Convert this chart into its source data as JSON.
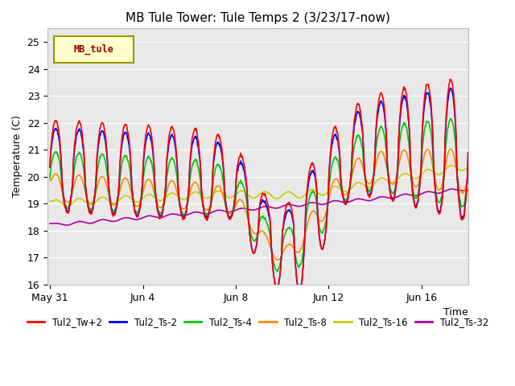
{
  "title": "MB Tule Tower: Tule Temps 2 (3/23/17-now)",
  "xlabel": "Time",
  "ylabel": "Temperature (C)",
  "ylim": [
    16.0,
    25.5
  ],
  "yticks": [
    16.0,
    17.0,
    18.0,
    19.0,
    20.0,
    21.0,
    22.0,
    23.0,
    24.0,
    25.0
  ],
  "legend_label": "MB_tule",
  "series": {
    "Tul2_Tw+2": {
      "color": "#ff0000",
      "lw": 1.2
    },
    "Tul2_Ts-2": {
      "color": "#0000ff",
      "lw": 1.2
    },
    "Tul2_Ts-4": {
      "color": "#00cc00",
      "lw": 1.2
    },
    "Tul2_Ts-8": {
      "color": "#ff8800",
      "lw": 1.2
    },
    "Tul2_Ts-16": {
      "color": "#cccc00",
      "lw": 1.2
    },
    "Tul2_Ts-32": {
      "color": "#aa00aa",
      "lw": 1.2
    }
  },
  "x_tick_labels": [
    "May 31",
    "Jun 4",
    "Jun 8",
    "Jun 12",
    "Jun 16"
  ],
  "x_tick_positions": [
    0,
    4,
    8,
    12,
    16
  ]
}
